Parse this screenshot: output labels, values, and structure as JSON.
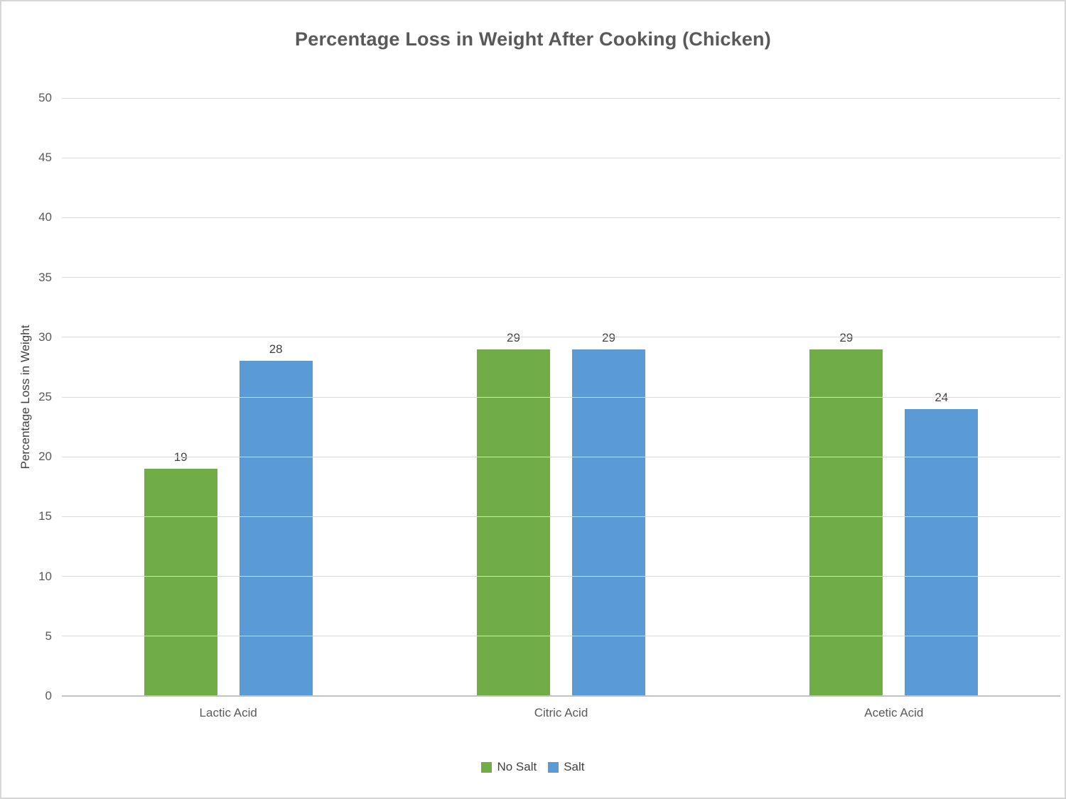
{
  "chart_data": {
    "type": "bar",
    "title": "Percentage Loss in Weight After Cooking (Chicken)",
    "xlabel": "",
    "ylabel": "Percentage Loss in Weight",
    "categories": [
      "Lactic Acid",
      "Citric Acid",
      "Acetic Acid"
    ],
    "series": [
      {
        "name": "No Salt",
        "color": "#70AD47",
        "values": [
          19,
          29,
          29
        ]
      },
      {
        "name": "Salt",
        "color": "#5B9BD5",
        "values": [
          28,
          29,
          24
        ]
      }
    ],
    "ylim": [
      0,
      50
    ],
    "ytick_step": 5,
    "yticks": [
      0,
      5,
      10,
      15,
      20,
      25,
      30,
      35,
      40,
      45,
      50
    ],
    "grid": true,
    "data_labels": true,
    "legend_position": "bottom"
  },
  "colors": {
    "gridline": "#d9d9d9",
    "axis_line": "#c3c3c3",
    "title_text": "#595959",
    "tick_text": "#595959",
    "label_text": "#404040",
    "background": "#ffffff",
    "border": "#d6d6d6"
  }
}
